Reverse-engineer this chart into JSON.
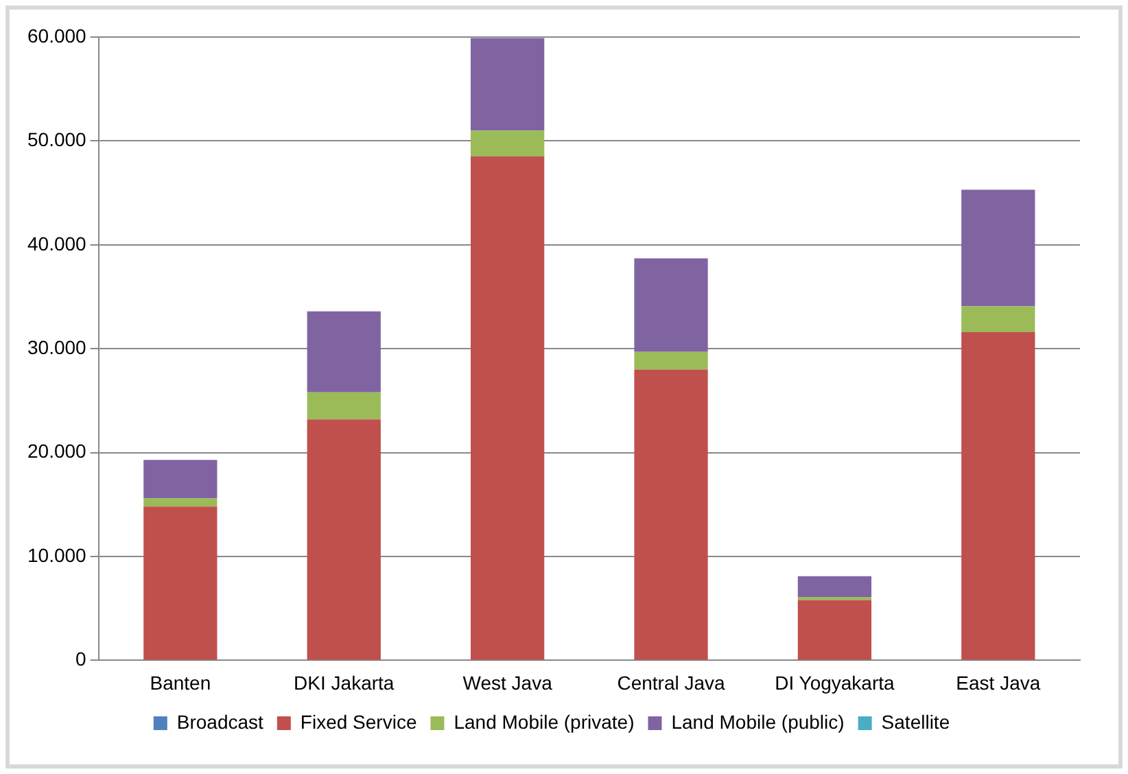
{
  "chart_data": {
    "type": "bar",
    "stacked": true,
    "categories": [
      "Banten",
      "DKI Jakarta",
      "West Java",
      "Central Java",
      "DI Yogyakarta",
      "East Java"
    ],
    "series": [
      {
        "name": "Broadcast",
        "color": "#4f81bd",
        "values": [
          null,
          null,
          null,
          null,
          null,
          null
        ]
      },
      {
        "name": "Fixed Service",
        "color": "#c0504d",
        "values": [
          14800,
          23200,
          48500,
          28000,
          5800,
          31600
        ]
      },
      {
        "name": "Land Mobile (private)",
        "color": "#9bbb59",
        "values": [
          800,
          2600,
          2500,
          1700,
          300,
          2500
        ]
      },
      {
        "name": "Land Mobile (public)",
        "color": "#8064a2",
        "values": [
          3700,
          7800,
          8900,
          9000,
          2000,
          11200
        ]
      },
      {
        "name": "Satellite",
        "color": "#4bacc6",
        "values": [
          null,
          null,
          null,
          null,
          null,
          null
        ]
      }
    ],
    "ylim": [
      0,
      60000
    ],
    "yticks": [
      {
        "value": 0,
        "label": "0"
      },
      {
        "value": 10000,
        "label": "10.000"
      },
      {
        "value": 20000,
        "label": "20.000"
      },
      {
        "value": 30000,
        "label": "30.000"
      },
      {
        "value": 40000,
        "label": "40.000"
      },
      {
        "value": 50000,
        "label": "50.000"
      },
      {
        "value": 60000,
        "label": "60.000"
      }
    ],
    "grid": "y",
    "legend": "bottom"
  }
}
